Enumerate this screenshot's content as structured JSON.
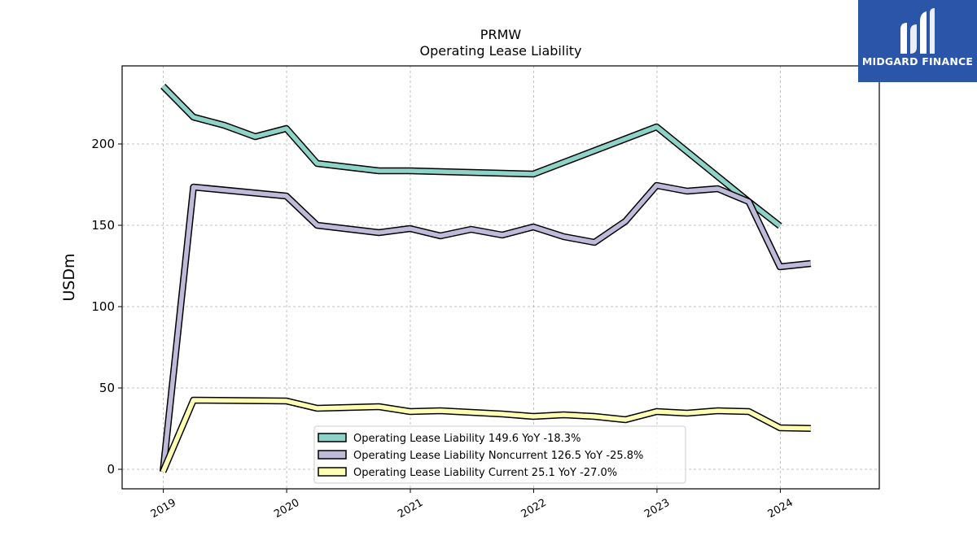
{
  "chart_data": {
    "type": "line",
    "title": "PRMW",
    "subtitle": "Operating Lease Liability",
    "ylabel": "USDm",
    "xlabel": "",
    "ylim": [
      -12,
      248
    ],
    "xlim": [
      "2018-09-01",
      "2024-10-20"
    ],
    "yticks": [
      0,
      50,
      100,
      150,
      200
    ],
    "xticks": [
      "2019",
      "2020",
      "2021",
      "2022",
      "2023",
      "2024"
    ],
    "grid": true,
    "legend_position": "bottom-center",
    "series": [
      {
        "name": "Operating Lease Liability",
        "legend_label": "Operating Lease Liability  149.6 YoY -18.3%",
        "color": "#8dd3c7",
        "points": [
          [
            "2018-12-31",
            235.5
          ],
          [
            "2019-03-31",
            216.5
          ],
          [
            "2019-06-30",
            211.5
          ],
          [
            "2019-09-30",
            204.5
          ],
          [
            "2019-12-31",
            209.5
          ],
          [
            "2020-03-31",
            188.0
          ],
          [
            "2020-09-30",
            183.5
          ],
          [
            "2020-12-31",
            183.5
          ],
          [
            "2021-12-31",
            181.5
          ],
          [
            "2022-12-31",
            210.5
          ],
          [
            "2023-09-30",
            164.5
          ],
          [
            "2023-12-31",
            149.6
          ]
        ]
      },
      {
        "name": "Operating Lease Liability Noncurrent",
        "legend_label": "Operating Lease Liability Noncurrent  126.5 YoY -25.8%",
        "color": "#bebada",
        "points": [
          [
            "2018-12-31",
            -1.5
          ],
          [
            "2019-03-31",
            173.5
          ],
          [
            "2019-12-31",
            168.0
          ],
          [
            "2020-03-31",
            150.0
          ],
          [
            "2020-09-30",
            145.5
          ],
          [
            "2020-12-31",
            148.0
          ],
          [
            "2021-03-31",
            143.5
          ],
          [
            "2021-06-30",
            147.5
          ],
          [
            "2021-09-30",
            144.0
          ],
          [
            "2021-12-31",
            149.0
          ],
          [
            "2022-03-31",
            143.0
          ],
          [
            "2022-06-30",
            139.5
          ],
          [
            "2022-09-30",
            152.5
          ],
          [
            "2022-12-31",
            174.5
          ],
          [
            "2023-03-31",
            171.0
          ],
          [
            "2023-06-30",
            172.5
          ],
          [
            "2023-09-30",
            164.5
          ],
          [
            "2023-12-31",
            124.5
          ],
          [
            "2024-03-31",
            126.5
          ]
        ]
      },
      {
        "name": "Operating Lease Liability Current",
        "legend_label": "Operating Lease Liability Current  25.1 YoY -27.0%",
        "color": "#ffffb3",
        "points": [
          [
            "2018-12-31",
            -1.5
          ],
          [
            "2019-03-31",
            42.5
          ],
          [
            "2019-12-31",
            42.0
          ],
          [
            "2020-03-31",
            37.5
          ],
          [
            "2020-09-30",
            38.5
          ],
          [
            "2020-12-31",
            35.5
          ],
          [
            "2021-03-31",
            36.0
          ],
          [
            "2021-06-30",
            35.0
          ],
          [
            "2021-09-30",
            34.0
          ],
          [
            "2021-12-31",
            32.5
          ],
          [
            "2022-03-31",
            33.5
          ],
          [
            "2022-06-30",
            32.5
          ],
          [
            "2022-09-30",
            30.5
          ],
          [
            "2022-12-31",
            35.5
          ],
          [
            "2023-03-31",
            34.5
          ],
          [
            "2023-06-30",
            36.0
          ],
          [
            "2023-09-30",
            35.5
          ],
          [
            "2023-12-31",
            25.5
          ],
          [
            "2024-03-31",
            25.1
          ]
        ]
      }
    ]
  },
  "logo": {
    "text": "MIDGARD FINANCE",
    "name": "midgard-finance-logo",
    "background": "#2a55a8"
  }
}
